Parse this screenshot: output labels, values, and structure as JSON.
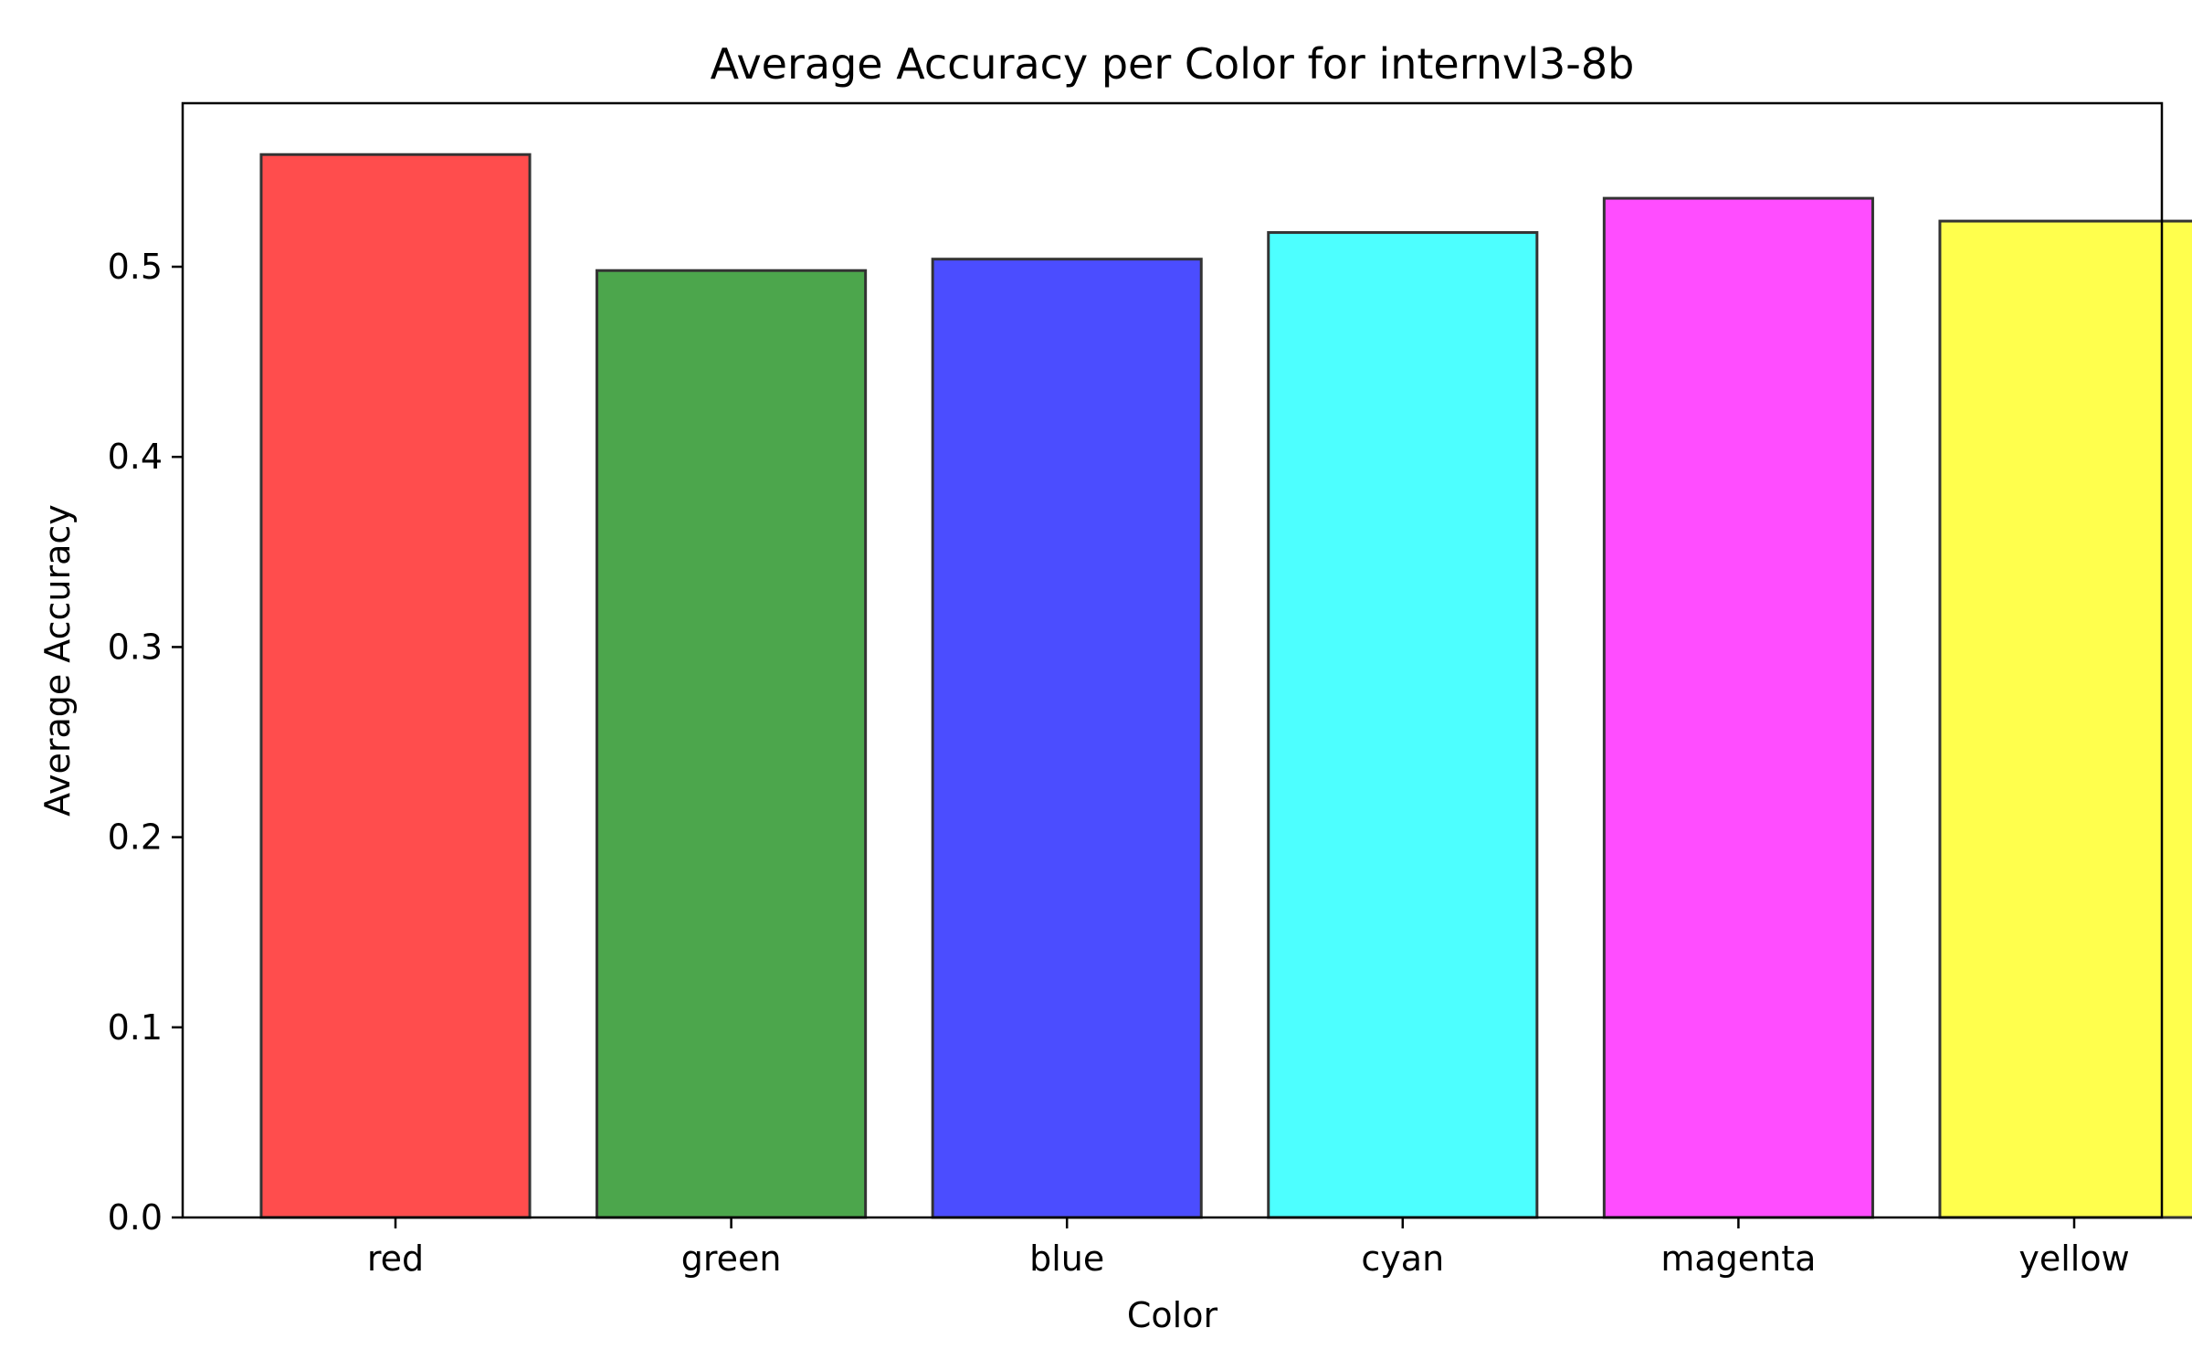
{
  "chart_data": {
    "type": "bar",
    "title": "Average Accuracy per Color for internvl3-8b",
    "xlabel": "Color",
    "ylabel": "Average Accuracy",
    "categories": [
      "red",
      "green",
      "blue",
      "cyan",
      "magenta",
      "yellow"
    ],
    "values": [
      0.559,
      0.498,
      0.504,
      0.518,
      0.536,
      0.524
    ],
    "bar_colors": [
      "#ff4d4d",
      "#4ca64c",
      "#4b4dff",
      "#4dffff",
      "#ff4dff",
      "#ffff4d"
    ],
    "bar_edge_color": "#333333",
    "ylim": [
      0,
      0.586
    ],
    "yticks": [
      0.0,
      0.1,
      0.2,
      0.3,
      0.4,
      0.5
    ],
    "ytick_labels": [
      "0.0",
      "0.1",
      "0.2",
      "0.3",
      "0.4",
      "0.5"
    ],
    "grid": false,
    "legend": "none"
  }
}
